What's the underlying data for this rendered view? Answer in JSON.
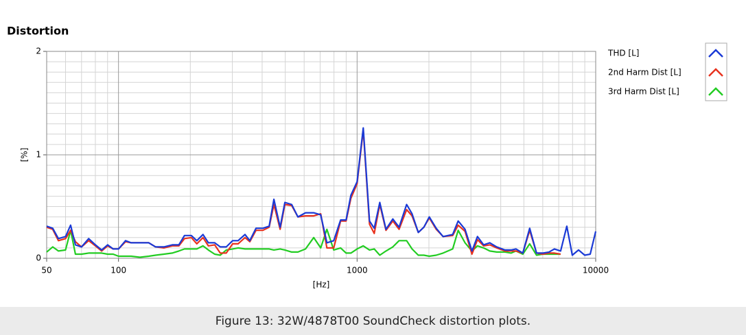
{
  "chart_data": {
    "type": "line",
    "title": "Distortion",
    "xlabel": "[Hz]",
    "ylabel": "[%]",
    "xscale": "log",
    "xlim": [
      50,
      10000
    ],
    "ylim": [
      0,
      2
    ],
    "xticks": [
      50,
      100,
      1000,
      10000
    ],
    "yticks": [
      0,
      1,
      2
    ],
    "x_minor_ticks": [
      60,
      70,
      80,
      90,
      200,
      300,
      400,
      500,
      600,
      700,
      800,
      900,
      2000,
      3000,
      4000,
      5000,
      6000,
      7000,
      8000,
      9000
    ],
    "y_minor_ticks": [
      0.1,
      0.2,
      0.3,
      0.4,
      0.5,
      0.6,
      0.7,
      0.8,
      0.9,
      1.1,
      1.2,
      1.3,
      1.4,
      1.5,
      1.6,
      1.7,
      1.8,
      1.9
    ],
    "grid": true,
    "x": [
      50,
      53,
      56,
      60,
      63,
      66,
      70,
      75,
      80,
      85,
      90,
      95,
      100,
      107,
      113,
      123,
      134,
      143,
      155,
      168,
      179,
      189,
      202,
      213,
      226,
      238,
      253,
      267,
      283,
      301,
      317,
      339,
      355,
      377,
      403,
      428,
      448,
      476,
      498,
      532,
      565,
      608,
      658,
      704,
      747,
      798,
      853,
      899,
      942,
      1000,
      1061,
      1127,
      1180,
      1245,
      1321,
      1412,
      1499,
      1613,
      1700,
      1805,
      1904,
      2007,
      2145,
      2292,
      2515,
      2652,
      2834,
      3029,
      3194,
      3391,
      3599,
      3846,
      4165,
      4421,
      4631,
      4949,
      5288,
      5652,
      5999,
      6368,
      6714,
      7129,
      7568,
      7980,
      8472,
      8994,
      9484,
      10000
    ],
    "series": [
      {
        "name": "THD [L]",
        "color": "#1a3ad6",
        "values": [
          0.31,
          0.29,
          0.19,
          0.21,
          0.32,
          0.13,
          0.11,
          0.19,
          0.13,
          0.08,
          0.13,
          0.09,
          0.09,
          0.17,
          0.15,
          0.15,
          0.15,
          0.11,
          0.11,
          0.13,
          0.13,
          0.22,
          0.22,
          0.17,
          0.23,
          0.15,
          0.15,
          0.11,
          0.11,
          0.17,
          0.17,
          0.23,
          0.17,
          0.29,
          0.29,
          0.31,
          0.57,
          0.3,
          0.54,
          0.52,
          0.4,
          0.44,
          0.44,
          0.42,
          0.15,
          0.17,
          0.37,
          0.37,
          0.61,
          0.74,
          1.26,
          0.36,
          0.29,
          0.54,
          0.28,
          0.38,
          0.3,
          0.52,
          0.43,
          0.25,
          0.3,
          0.4,
          0.29,
          0.21,
          0.23,
          0.36,
          0.28,
          0.07,
          0.21,
          0.13,
          0.15,
          0.11,
          0.08,
          0.08,
          0.09,
          0.05,
          0.29,
          0.05,
          0.05,
          0.06,
          0.09,
          0.07,
          0.31,
          0.03,
          0.08,
          0.03,
          0.04,
          0.26
        ]
      },
      {
        "name": "2nd Harm Dist [L]",
        "color": "#e8321e",
        "values": [
          0.3,
          0.28,
          0.17,
          0.19,
          0.27,
          0.16,
          0.11,
          0.17,
          0.12,
          0.07,
          0.12,
          0.09,
          0.09,
          0.16,
          0.15,
          0.15,
          0.15,
          0.11,
          0.1,
          0.12,
          0.12,
          0.19,
          0.2,
          0.14,
          0.2,
          0.12,
          0.13,
          0.05,
          0.05,
          0.14,
          0.14,
          0.2,
          0.16,
          0.27,
          0.27,
          0.3,
          0.52,
          0.28,
          0.52,
          0.51,
          0.4,
          0.41,
          0.41,
          0.43,
          0.1,
          0.1,
          0.36,
          0.36,
          0.58,
          0.72,
          1.24,
          0.33,
          0.24,
          0.52,
          0.27,
          0.36,
          0.28,
          0.47,
          0.41,
          0.25,
          0.3,
          0.39,
          0.28,
          0.21,
          0.22,
          0.32,
          0.26,
          0.04,
          0.18,
          0.12,
          0.13,
          0.1,
          0.07,
          0.07,
          0.07,
          0.05,
          0.27,
          0.05,
          0.04,
          0.05,
          0.05,
          0.04,
          null,
          null,
          null,
          null,
          null,
          null
        ]
      },
      {
        "name": "3rd Harm Dist [L]",
        "color": "#22cc22",
        "values": [
          0.06,
          0.11,
          0.07,
          0.08,
          0.27,
          0.04,
          0.04,
          0.05,
          0.05,
          0.05,
          0.04,
          0.04,
          0.02,
          0.02,
          0.02,
          0.01,
          0.02,
          0.03,
          0.04,
          0.05,
          0.07,
          0.09,
          0.09,
          0.09,
          0.12,
          0.08,
          0.04,
          0.03,
          0.08,
          0.09,
          0.1,
          0.09,
          0.09,
          0.09,
          0.09,
          0.09,
          0.08,
          0.09,
          0.08,
          0.06,
          0.06,
          0.09,
          0.2,
          0.1,
          0.28,
          0.08,
          0.1,
          0.05,
          0.05,
          0.09,
          0.12,
          0.08,
          0.09,
          0.03,
          0.07,
          0.11,
          0.17,
          0.17,
          0.09,
          0.03,
          0.03,
          0.02,
          0.03,
          0.05,
          0.09,
          0.27,
          0.15,
          0.07,
          0.12,
          0.1,
          0.07,
          0.06,
          0.06,
          0.05,
          0.07,
          0.04,
          0.14,
          0.03,
          0.04,
          0.04,
          0.04,
          0.04,
          null,
          null,
          null,
          null,
          null,
          null
        ]
      }
    ]
  },
  "caption": "Figure 13: 32W/4878T00 SoundCheck distortion plots."
}
